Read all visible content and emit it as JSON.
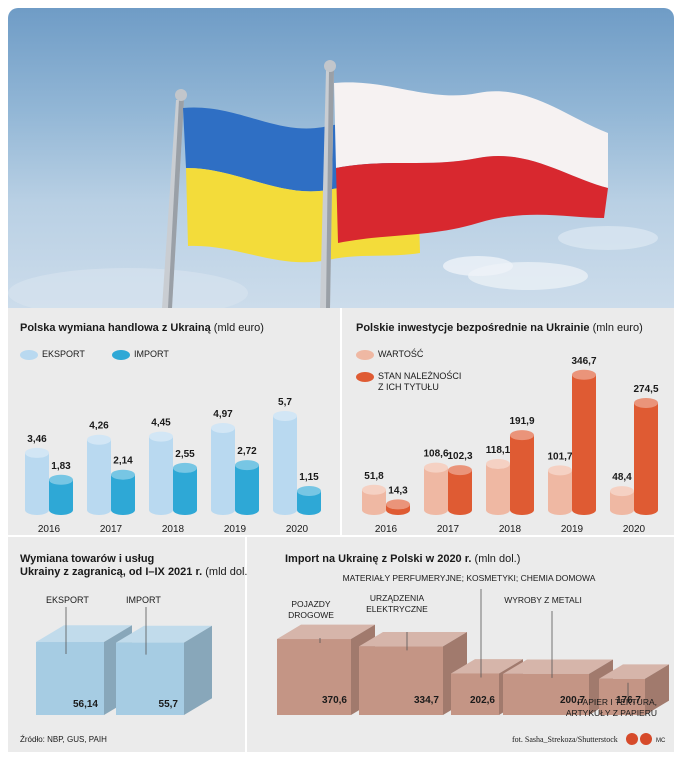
{
  "colors": {
    "eksport": "#b9d9f0",
    "import": "#2ea8d6",
    "wartosc": "#efb8a3",
    "stan": "#df5b33",
    "panel_bg": "#ebebeb",
    "box_blue": "#a6cce3",
    "box_brown": "#c49585"
  },
  "chart_data": [
    {
      "type": "bar",
      "title": "Polska wymiana handlowa z Ukrainą",
      "unit": "(mld euro)",
      "categories": [
        "2016",
        "2017",
        "2018",
        "2019",
        "2020"
      ],
      "series": [
        {
          "name": "EKSPORT",
          "values": [
            3.46,
            4.26,
            4.45,
            4.97,
            5.7
          ],
          "labels": [
            "3,46",
            "4,26",
            "4,45",
            "4,97",
            "5,7"
          ]
        },
        {
          "name": "IMPORT",
          "values": [
            1.83,
            2.14,
            2.55,
            2.72,
            1.15
          ],
          "labels": [
            "1,83",
            "2,14",
            "2,55",
            "2,72",
            "1,15"
          ]
        }
      ]
    },
    {
      "type": "bar",
      "title": "Polskie inwestycje bezpośrednie na Ukrainie",
      "unit": "(mln euro)",
      "categories": [
        "2016",
        "2017",
        "2018",
        "2019",
        "2020"
      ],
      "series": [
        {
          "name": "WARTOŚĆ",
          "values": [
            51.8,
            108.6,
            118.1,
            101.7,
            48.4
          ],
          "labels": [
            "51,8",
            "108,6",
            "118,1",
            "101,7",
            "48,4"
          ]
        },
        {
          "name": "STAN NALEŻNOŚCI\nZ ICH TYTUŁU",
          "values": [
            14.3,
            102.3,
            191.9,
            346.7,
            274.5
          ],
          "labels": [
            "14,3",
            "102,3",
            "191,9",
            "346,7",
            "274,5"
          ]
        }
      ]
    },
    {
      "type": "bar",
      "title_line1": "Wymiana towarów i usług",
      "title_line2": "Ukrainy z zagranicą, od I–IX 2021 r.",
      "unit": "(mld dol.)",
      "categories": [
        "EKSPORT",
        "IMPORT"
      ],
      "values": [
        56.14,
        55.7
      ],
      "labels": [
        "56,14",
        "55,7"
      ]
    },
    {
      "type": "bar",
      "title": "Import na Ukrainę z Polski w 2020 r.",
      "unit": "(mln dol.)",
      "categories": [
        "POJAZDY\nDROGOWE",
        "URZĄDZENIA\nELEKTRYCZNE",
        "MATERIAŁY PERFUMERYJNE; KOSMETYKI; CHEMIA DOMOWA",
        "WYROBY Z METALI",
        "PAPIER I TEKTURA,\nARTYKUŁY Z PAPIERU"
      ],
      "values": [
        370.6,
        334.7,
        202.6,
        200.7,
        176.7
      ],
      "labels": [
        "370,6",
        "334,7",
        "202,6",
        "200,7",
        "176,7"
      ]
    }
  ],
  "footer": {
    "source": "Źródło: NBP, GUS, PAIH",
    "photo_credit": "fot. Sasha_Strekoza/Shutterstock",
    "author": "MC"
  }
}
